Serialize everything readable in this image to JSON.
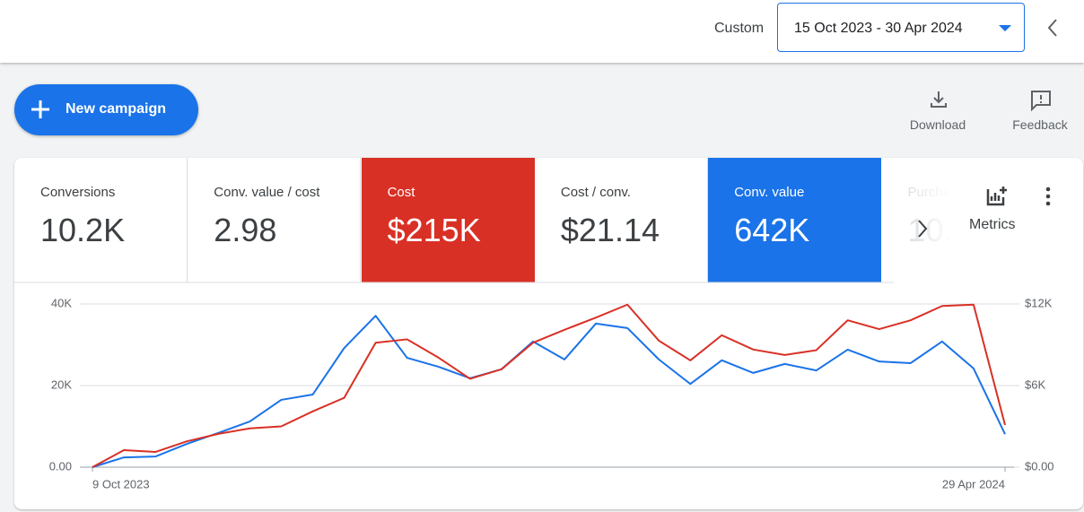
{
  "header": {
    "label": "Custom",
    "date_range": "15 Oct 2023 - 30 Apr 2024"
  },
  "toolbar": {
    "new_campaign": "New campaign",
    "download": "Download",
    "feedback": "Feedback"
  },
  "metrics": [
    {
      "label": "Conversions",
      "value": "10.2K"
    },
    {
      "label": "Conv. value / cost",
      "value": "2.98"
    },
    {
      "label": "Cost",
      "value": "$215K",
      "color": "#d93025"
    },
    {
      "label": "Cost / conv.",
      "value": "$21.14"
    },
    {
      "label": "Conv. value",
      "value": "642K",
      "color": "#1a73e8"
    },
    {
      "label": "Purcha",
      "value": "10."
    }
  ],
  "metrics_button": "Metrics",
  "chart_data": {
    "type": "line",
    "categories": [
      "9 Oct 2023",
      null,
      null,
      null,
      null,
      null,
      null,
      null,
      null,
      null,
      null,
      null,
      null,
      null,
      null,
      null,
      null,
      null,
      null,
      null,
      null,
      null,
      null,
      null,
      null,
      null,
      null,
      null,
      null,
      "29 Apr 2024"
    ],
    "series": [
      {
        "color": "#1a73e8",
        "axis": "y",
        "values": [
          0,
          2400,
          2600,
          5700,
          8400,
          11200,
          16500,
          17800,
          29200,
          37100,
          26800,
          24600,
          21800,
          24000,
          30800,
          26400,
          35200,
          34100,
          26400,
          20400,
          26200,
          23100,
          25300,
          23700,
          28800,
          25900,
          25500,
          30800,
          24200,
          8100
        ]
      },
      {
        "color": "#d93025",
        "axis": "y2",
        "values": [
          0,
          1250,
          1120,
          1900,
          2450,
          2850,
          3000,
          4100,
          5100,
          9150,
          9400,
          8050,
          6500,
          7200,
          9150,
          10100,
          11000,
          11950,
          9300,
          7850,
          9700,
          8650,
          8250,
          8600,
          10800,
          10150,
          10800,
          11850,
          11950,
          3100
        ]
      }
    ],
    "ylim": [
      0,
      40000
    ],
    "yticks": [
      {
        "value": 0,
        "label": "0.00"
      },
      {
        "value": 20000,
        "label": "20K"
      },
      {
        "value": 40000,
        "label": "40K"
      }
    ],
    "y2lim": [
      0,
      12000
    ],
    "y2ticks": [
      {
        "value": 0,
        "label": "$0.00"
      },
      {
        "value": 6000,
        "label": "$6K"
      },
      {
        "value": 12000,
        "label": "$12K"
      }
    ],
    "grid": true
  }
}
